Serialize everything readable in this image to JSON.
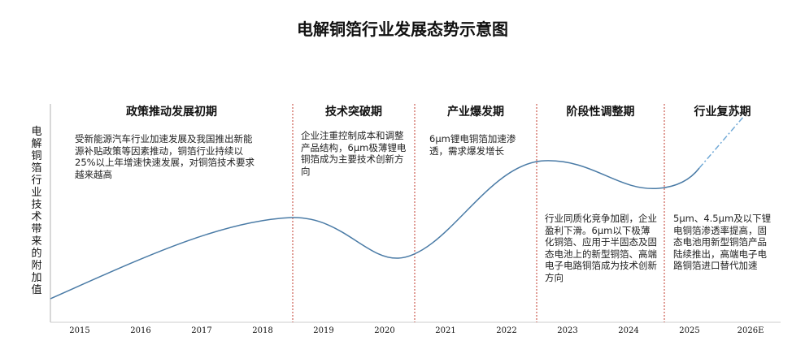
{
  "title": "电解铜箔行业发展态势示意图",
  "y_axis_label": "电解铜箔行业技术带来的附加值",
  "phases": [
    {
      "name": "政策推动发展初期",
      "description": "受新能源汽车行业加速发展及我国推出新能源补贴政策等因素推动，铜箔行业持续以25%以上年增速快速发展，对铜箔技术要求越来越高"
    },
    {
      "name": "技术突破期",
      "description": "企业注重控制成本和调整产品结构，6μm极薄锂电铜箔成为主要技术创新方向"
    },
    {
      "name": "产业爆发期",
      "description": "6μm锂电铜箔加速渗透，需求爆发增长"
    },
    {
      "name": "阶段性调整期",
      "description": "行业同质化竞争加剧，企业盈利下滑。6μm以下极薄化铜箔、应用于半固态及固态电池上的新型铜箔、高端电子电路铜箔成为技术创新方向"
    },
    {
      "name": "行业复苏期",
      "description": "5μm、4.5μm及以下锂电铜箔渗透率提高，固态电池用新型铜箔产品陆续推出，高端电子电路铜箔进口替代加速"
    }
  ],
  "years": [
    "2015",
    "2016",
    "2017",
    "2018",
    "2019",
    "2020",
    "2021",
    "2022",
    "2023",
    "2024",
    "2025",
    "2026E"
  ],
  "colors": {
    "curve": "#4a7ba6",
    "divider": "#c0392b"
  }
}
